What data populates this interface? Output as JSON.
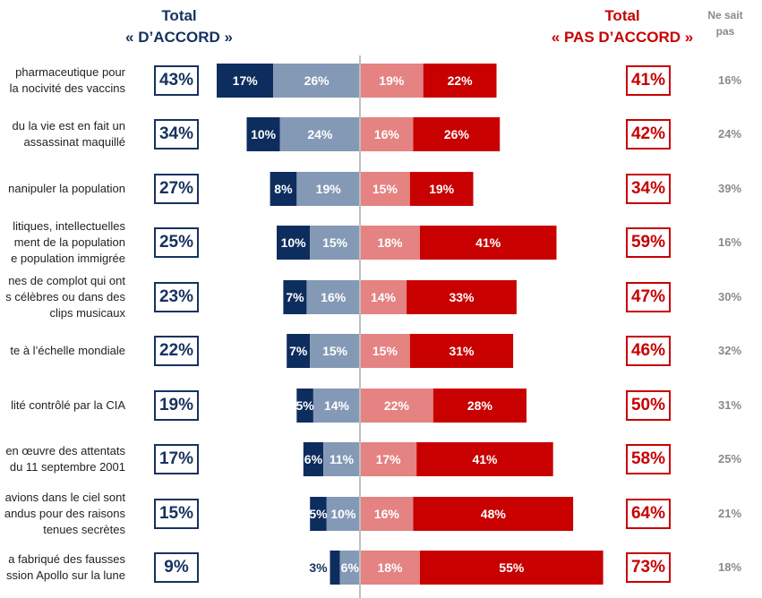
{
  "header": {
    "agree_line1": "Total",
    "agree_line2": "« D’ACCORD »",
    "disagree_line1": "Total",
    "disagree_line2": "« PAS D’ACCORD »",
    "dontknow_line1": "Ne sait",
    "dontknow_line2": "pas"
  },
  "colors": {
    "tout_a_fait_daccord": "#0d2d5e",
    "plutot_daccord": "#8499b5",
    "plutot_pas_daccord": "#e58282",
    "pas_du_tout_daccord": "#c80000",
    "total_agree": "#16325f",
    "total_disagree": "#c80000",
    "dontknow": "#8a8a8a"
  },
  "chart_data": {
    "type": "bar",
    "layout": "diverging-stacked-horizontal",
    "categories": [
      "pharmaceutique pour\nla nocivité des vaccins",
      "du la vie est en fait un\nassassinat maquillé",
      "nanipuler la population",
      "litiques, intellectuelles\nment de la population\ne population immigrée",
      "nes de complot qui ont\ns célèbres ou dans des\nclips musicaux",
      "te à l’échelle mondiale",
      "lité contrôlé par la CIA",
      "en œuvre des attentats\ndu 11 septembre 2001",
      "avions dans le ciel sont\nandus pour des raisons\ntenues secrètes",
      "a fabriqué des fausses\nssion Apollo sur la lune"
    ],
    "series": [
      {
        "key": "tout_a_fait_daccord",
        "values": [
          17,
          10,
          8,
          10,
          7,
          7,
          5,
          6,
          5,
          3
        ]
      },
      {
        "key": "plutot_daccord",
        "values": [
          26,
          24,
          19,
          15,
          16,
          15,
          14,
          11,
          10,
          6
        ]
      },
      {
        "key": "plutot_pas_daccord",
        "values": [
          19,
          16,
          15,
          18,
          14,
          15,
          22,
          17,
          16,
          18
        ]
      },
      {
        "key": "pas_du_tout_daccord",
        "values": [
          22,
          26,
          19,
          41,
          33,
          31,
          28,
          41,
          48,
          55
        ]
      }
    ],
    "total_agree": [
      43,
      34,
      27,
      25,
      23,
      22,
      19,
      17,
      15,
      9
    ],
    "total_disagree": [
      41,
      42,
      34,
      59,
      47,
      46,
      50,
      58,
      64,
      73
    ],
    "dont_know": [
      16,
      24,
      39,
      16,
      30,
      32,
      31,
      25,
      21,
      18
    ],
    "labels": {
      "agree_row": [
        "43%",
        "34%",
        "27%",
        "25%",
        "23%",
        "22%",
        "19%",
        "17%",
        "15%",
        "9%"
      ],
      "disagree_row": [
        "41%",
        "42%",
        "34%",
        "59%",
        "47%",
        "46%",
        "50%",
        "58%",
        "64%",
        "73%"
      ],
      "dontknow_row": [
        "16%",
        "24%",
        "39%",
        "16%",
        "30%",
        "32%",
        "31%",
        "25%",
        "21%",
        "18%"
      ],
      "seg": [
        [
          "17%",
          "26%",
          "19%",
          "22%"
        ],
        [
          "10%",
          "24%",
          "16%",
          "26%"
        ],
        [
          "8%",
          "19%",
          "15%",
          "19%"
        ],
        [
          "10%",
          "15%",
          "18%",
          "41%"
        ],
        [
          "7%",
          "16%",
          "14%",
          "33%"
        ],
        [
          "7%",
          "15%",
          "15%",
          "31%"
        ],
        [
          "5%",
          "14%",
          "22%",
          "28%"
        ],
        [
          "6%",
          "11%",
          "17%",
          "41%"
        ],
        [
          "5%",
          "10%",
          "16%",
          "48%"
        ],
        [
          "3%",
          "6%",
          "18%",
          "55%"
        ]
      ]
    },
    "center_line": true,
    "grid": false
  }
}
